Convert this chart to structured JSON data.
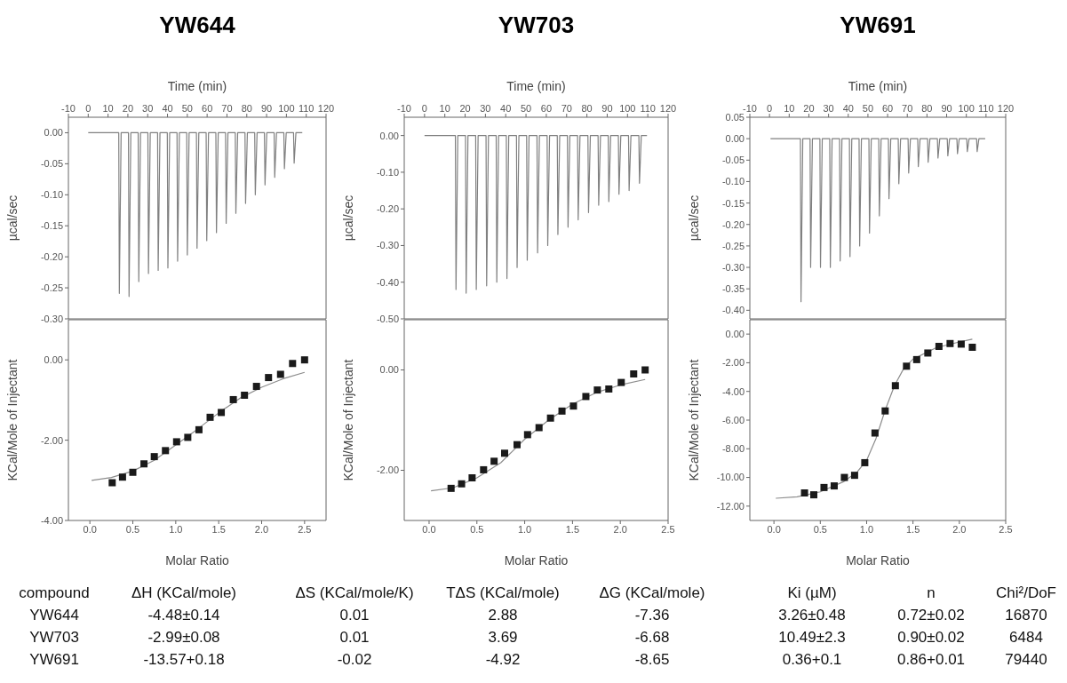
{
  "chart_data": [
    {
      "type": "line",
      "title": "YW644",
      "xlabel": "Time (min)",
      "ylabel": "µcal/sec",
      "xlim": [
        -10,
        120
      ],
      "xticks": [
        -10,
        0,
        10,
        20,
        30,
        40,
        50,
        60,
        70,
        80,
        90,
        100,
        110,
        120
      ],
      "ylim": [
        -0.3,
        0.025
      ],
      "yticks": [
        {
          "value": 0,
          "label": "0.00"
        },
        {
          "value": -0.05,
          "label": "-0.05"
        },
        {
          "value": -0.1,
          "label": "-0.10"
        },
        {
          "value": -0.15,
          "label": "-0.15"
        },
        {
          "value": -0.2,
          "label": "-0.20"
        },
        {
          "value": -0.25,
          "label": "-0.25"
        },
        {
          "value": -0.3,
          "label": "-0.30"
        }
      ],
      "series": [
        {
          "color": "#808080",
          "x": [
            0,
            15.4,
            15.7,
            16.6,
            20.3,
            20.6,
            21.5,
            25.2,
            25.5,
            26.4,
            30.1,
            30.4,
            31.3,
            35.0,
            35.3,
            36.2,
            39.9,
            40.2,
            41.1,
            44.8,
            45.1,
            46.0,
            49.7,
            50.0,
            50.9,
            54.6,
            54.9,
            55.8,
            59.5,
            59.8,
            60.7,
            64.4,
            64.7,
            65.6,
            69.3,
            69.6,
            70.5,
            74.2,
            74.5,
            75.4,
            79.1,
            79.4,
            80.3,
            84.0,
            84.3,
            85.2,
            88.9,
            89.2,
            90.1,
            93.8,
            94.1,
            95.0,
            98.7,
            99.0,
            99.9,
            103.6,
            103.9,
            104.8,
            108
          ],
          "values": [
            0,
            0,
            -0.259,
            0,
            0,
            -0.264,
            0,
            0,
            -0.24,
            0,
            0,
            -0.227,
            0,
            0,
            -0.222,
            0,
            0,
            -0.218,
            0,
            0,
            -0.207,
            0,
            0,
            -0.197,
            0,
            0,
            -0.186,
            0,
            0,
            -0.174,
            0,
            0,
            -0.161,
            0,
            0,
            -0.146,
            0,
            0,
            -0.13,
            0,
            0,
            -0.114,
            0,
            0,
            -0.1,
            0,
            0,
            -0.084,
            0,
            0,
            -0.072,
            0,
            0,
            -0.058,
            0,
            0,
            -0.049,
            0,
            0
          ]
        }
      ]
    },
    {
      "type": "scatter",
      "xlabel": "Molar Ratio",
      "ylabel": "KCal/Mole of Injectant",
      "marker": "square",
      "xlim": [
        -0.25,
        2.75
      ],
      "xticks": [
        {
          "value": 0,
          "label": "0.0"
        },
        {
          "value": 0.5,
          "label": "0.5"
        },
        {
          "value": 1,
          "label": "1.0"
        },
        {
          "value": 1.5,
          "label": "1.5"
        },
        {
          "value": 2,
          "label": "2.0"
        },
        {
          "value": 2.5,
          "label": "2.5"
        }
      ],
      "ylim": [
        -4,
        1
      ],
      "yticks": [
        {
          "value": 0,
          "label": "0.00"
        },
        {
          "value": -2,
          "label": "-2.00"
        },
        {
          "value": -4,
          "label": "-4.00"
        }
      ],
      "series": [
        {
          "color": "#1a1a1a",
          "x": [
            0.26,
            0.38,
            0.5,
            0.63,
            0.75,
            0.88,
            1.01,
            1.14,
            1.27,
            1.4,
            1.53,
            1.67,
            1.8,
            1.94,
            2.08,
            2.22,
            2.36,
            2.5
          ],
          "values": [
            -3.06,
            -2.92,
            -2.8,
            -2.59,
            -2.41,
            -2.26,
            -2.04,
            -1.93,
            -1.74,
            -1.43,
            -1.31,
            -0.99,
            -0.88,
            -0.66,
            -0.44,
            -0.36,
            -0.09,
            0.0
          ]
        },
        {
          "type": "line",
          "marker": "none",
          "color": "#8c8c8c",
          "x": [
            0.02,
            0.25,
            0.5,
            0.75,
            1.0,
            1.25,
            1.5,
            1.75,
            2.0,
            2.25,
            2.5
          ],
          "values": [
            -3.0,
            -2.93,
            -2.77,
            -2.5,
            -2.12,
            -1.73,
            -1.32,
            -0.95,
            -0.68,
            -0.47,
            -0.31
          ]
        }
      ]
    },
    {
      "type": "line",
      "title": "YW703",
      "xlabel": "Time (min)",
      "ylabel": "µcal/sec",
      "xlim": [
        -10,
        120
      ],
      "xticks": [
        -10,
        0,
        10,
        20,
        30,
        40,
        50,
        60,
        70,
        80,
        90,
        100,
        110,
        120
      ],
      "ylim": [
        -0.5,
        0.05
      ],
      "yticks": [
        {
          "value": 0,
          "label": "0.00"
        },
        {
          "value": -0.1,
          "label": "-0.10"
        },
        {
          "value": -0.2,
          "label": "-0.20"
        },
        {
          "value": -0.3,
          "label": "-0.30"
        },
        {
          "value": -0.4,
          "label": "-0.40"
        },
        {
          "value": -0.5,
          "label": "-0.50"
        }
      ],
      "series": [
        {
          "color": "#808080",
          "x": [
            0,
            15.2,
            15.5,
            16.4,
            20.2,
            20.5,
            21.4,
            25.2,
            25.5,
            26.4,
            30.3,
            30.6,
            31.5,
            35.3,
            35.6,
            36.5,
            40.3,
            40.6,
            41.5,
            45.3,
            45.6,
            46.5,
            50.3,
            50.6,
            51.5,
            55.4,
            55.7,
            56.6,
            60.4,
            60.7,
            61.6,
            65.4,
            65.7,
            66.6,
            70.4,
            70.7,
            71.6,
            75.4,
            75.7,
            76.6,
            80.5,
            80.8,
            81.7,
            85.5,
            85.8,
            86.7,
            90.5,
            90.8,
            91.7,
            95.5,
            95.8,
            96.7,
            100.5,
            100.8,
            101.7,
            105.6,
            105.9,
            106.8,
            109.6
          ],
          "values": [
            0,
            0,
            -0.42,
            0,
            0,
            -0.43,
            0,
            0,
            -0.42,
            0,
            0,
            -0.41,
            0,
            0,
            -0.4,
            0,
            0,
            -0.39,
            0,
            0,
            -0.36,
            0,
            0,
            -0.34,
            0,
            0,
            -0.32,
            0,
            0,
            -0.3,
            0,
            0,
            -0.27,
            0,
            0,
            -0.25,
            0,
            0,
            -0.23,
            0,
            0,
            -0.21,
            0,
            0,
            -0.19,
            0,
            0,
            -0.18,
            0,
            0,
            -0.16,
            0,
            0,
            -0.15,
            0,
            0,
            -0.13,
            0,
            0
          ]
        }
      ]
    },
    {
      "type": "scatter",
      "xlabel": "Molar Ratio",
      "ylabel": "KCal/Mole of Injectant",
      "marker": "square",
      "xlim": [
        -0.26,
        2.5
      ],
      "xticks": [
        {
          "value": 0,
          "label": "0.0"
        },
        {
          "value": 0.5,
          "label": "0.5"
        },
        {
          "value": 1,
          "label": "1.0"
        },
        {
          "value": 1.5,
          "label": "1.5"
        },
        {
          "value": 2,
          "label": "2.0"
        },
        {
          "value": 2.5,
          "label": "2.5"
        }
      ],
      "ylim": [
        -3,
        1
      ],
      "yticks": [
        {
          "value": 0,
          "label": "0.00"
        },
        {
          "value": -2,
          "label": "-2.00"
        }
      ],
      "series": [
        {
          "color": "#1a1a1a",
          "x": [
            0.23,
            0.34,
            0.45,
            0.57,
            0.68,
            0.79,
            0.92,
            1.03,
            1.15,
            1.27,
            1.39,
            1.51,
            1.64,
            1.76,
            1.88,
            2.01,
            2.14,
            2.26
          ],
          "values": [
            -2.36,
            -2.27,
            -2.15,
            -1.99,
            -1.82,
            -1.66,
            -1.49,
            -1.29,
            -1.15,
            -0.96,
            -0.82,
            -0.72,
            -0.53,
            -0.4,
            -0.38,
            -0.25,
            -0.08,
            0.0
          ]
        },
        {
          "type": "line",
          "marker": "none",
          "color": "#8c8c8c",
          "x": [
            0.02,
            0.25,
            0.5,
            0.75,
            1.0,
            1.25,
            1.5,
            1.75,
            2.0,
            2.26
          ],
          "values": [
            -2.41,
            -2.35,
            -2.15,
            -1.85,
            -1.38,
            -1.0,
            -0.68,
            -0.45,
            -0.3,
            -0.19
          ]
        }
      ]
    },
    {
      "type": "line",
      "title": "YW691",
      "xlabel": "Time (min)",
      "ylabel": "µcal/sec",
      "xlim": [
        -10,
        120
      ],
      "xticks": [
        -10,
        0,
        10,
        20,
        30,
        40,
        50,
        60,
        70,
        80,
        90,
        100,
        110,
        120
      ],
      "ylim": [
        -0.42,
        0.05
      ],
      "yticks": [
        {
          "value": 0.05,
          "label": "0.05"
        },
        {
          "value": 0,
          "label": "0.00"
        },
        {
          "value": -0.05,
          "label": "-0.05"
        },
        {
          "value": -0.1,
          "label": "-0.10"
        },
        {
          "value": -0.15,
          "label": "-0.15"
        },
        {
          "value": -0.2,
          "label": "-0.20"
        },
        {
          "value": -0.25,
          "label": "-0.25"
        },
        {
          "value": -0.3,
          "label": "-0.30"
        },
        {
          "value": -0.35,
          "label": "-0.35"
        },
        {
          "value": -0.4,
          "label": "-0.40"
        }
      ],
      "series": [
        {
          "color": "#808080",
          "x": [
            0.5,
            15.7,
            16.0,
            16.9,
            20.6,
            20.9,
            21.8,
            25.6,
            25.9,
            26.8,
            30.6,
            30.9,
            31.8,
            35.6,
            35.9,
            36.8,
            40.6,
            40.9,
            41.8,
            45.5,
            45.8,
            46.7,
            50.5,
            50.8,
            51.7,
            55.5,
            55.8,
            56.7,
            60.4,
            60.7,
            61.6,
            65.4,
            65.7,
            66.6,
            70.4,
            70.7,
            71.6,
            75.3,
            75.6,
            76.5,
            80.3,
            80.6,
            81.5,
            85.3,
            85.6,
            86.5,
            90.3,
            90.6,
            91.5,
            95.2,
            95.5,
            96.4,
            100.2,
            100.5,
            101.4,
            105.2,
            105.5,
            106.4,
            109.6
          ],
          "values": [
            0,
            0,
            -0.38,
            0,
            0,
            -0.3,
            0,
            0,
            -0.3,
            0,
            0,
            -0.3,
            0,
            0,
            -0.285,
            0,
            0,
            -0.275,
            0,
            0,
            -0.25,
            0,
            0,
            -0.22,
            0,
            0,
            -0.18,
            0,
            0,
            -0.14,
            0,
            0,
            -0.105,
            0,
            0,
            -0.08,
            0,
            0,
            -0.065,
            0,
            0,
            -0.055,
            0,
            0,
            -0.045,
            0,
            0,
            -0.04,
            0,
            0,
            -0.035,
            0,
            0,
            -0.03,
            0,
            0,
            -0.03,
            0,
            0
          ]
        }
      ]
    },
    {
      "type": "scatter",
      "xlabel": "Molar Ratio",
      "ylabel": "KCal/Mole of Injectant",
      "marker": "square",
      "xlim": [
        -0.26,
        2.5
      ],
      "xticks": [
        {
          "value": 0,
          "label": "0.0"
        },
        {
          "value": 0.5,
          "label": "0.5"
        },
        {
          "value": 1,
          "label": "1.0"
        },
        {
          "value": 1.5,
          "label": "1.5"
        },
        {
          "value": 2,
          "label": "2.0"
        },
        {
          "value": 2.5,
          "label": "2.5"
        }
      ],
      "ylim": [
        -13,
        1
      ],
      "yticks": [
        {
          "value": 0,
          "label": "0.00"
        },
        {
          "value": -2,
          "label": "-2.00"
        },
        {
          "value": -4,
          "label": "-4.00"
        },
        {
          "value": -6,
          "label": "-6.00"
        },
        {
          "value": -8,
          "label": "-8.00"
        },
        {
          "value": -10,
          "label": "-10.00"
        },
        {
          "value": -12,
          "label": "-12.00"
        }
      ],
      "series": [
        {
          "color": "#1a1a1a",
          "x": [
            0.33,
            0.43,
            0.54,
            0.65,
            0.76,
            0.87,
            0.98,
            1.09,
            1.2,
            1.31,
            1.43,
            1.54,
            1.66,
            1.78,
            1.9,
            2.02,
            2.14
          ],
          "values": [
            -11.08,
            -11.21,
            -10.7,
            -10.59,
            -10.0,
            -9.85,
            -8.97,
            -6.9,
            -5.36,
            -3.6,
            -2.24,
            -1.78,
            -1.32,
            -0.86,
            -0.66,
            -0.7,
            -0.92
          ]
        },
        {
          "type": "line",
          "marker": "none",
          "color": "#8c8c8c",
          "x": [
            0.02,
            0.25,
            0.5,
            0.75,
            0.9,
            1.0,
            1.1,
            1.2,
            1.3,
            1.4,
            1.5,
            1.75,
            2.0,
            2.14
          ],
          "values": [
            -11.45,
            -11.35,
            -11.0,
            -10.3,
            -9.6,
            -8.8,
            -7.3,
            -5.3,
            -3.6,
            -2.4,
            -1.75,
            -0.95,
            -0.55,
            -0.35
          ]
        }
      ]
    },
    {
      "type": "other",
      "categories": [
        "compound",
        "ΔH (KCal/mole)",
        "ΔS (KCal/mole/K)",
        "TΔS (KCal/mole)",
        "ΔG (KCal/mole)",
        "Ki (µM)",
        "n",
        "Chi²/DoF"
      ],
      "annotations": [
        "YW644",
        "-4.48±0.14",
        "0.01",
        "2.88",
        "-7.36",
        "3.26±0.48",
        "0.72±0.02",
        "16870",
        "YW703",
        "-2.99±0.08",
        "0.01",
        "3.69",
        "-6.68",
        "10.49±2.3",
        "0.90±0.02",
        "6484",
        "YW691",
        "-13.57+0.18",
        "-0.02",
        "-4.92",
        "-8.65",
        "0.36+0.1",
        "0.86+0.01",
        "79440"
      ]
    }
  ]
}
